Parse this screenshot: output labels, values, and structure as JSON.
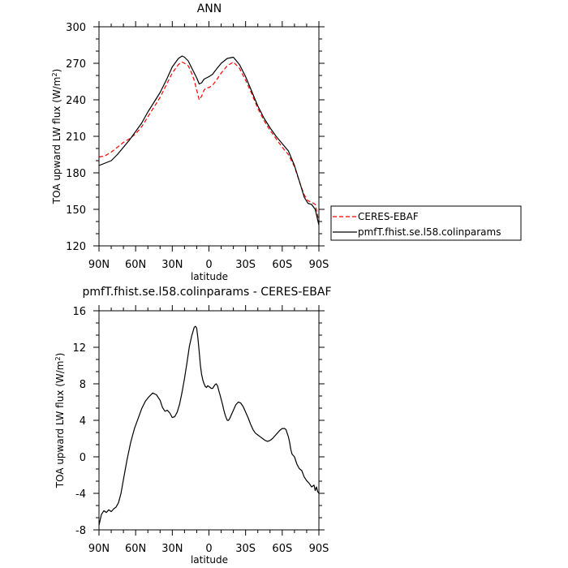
{
  "chart_data": [
    {
      "type": "line",
      "title": "ANN",
      "xlabel": "latitude",
      "ylabel_main": "TOA upward LW flux (W/m",
      "ylabel_sup": "2",
      "ylabel_close": ")",
      "xlim": [
        90,
        -90
      ],
      "ylim": [
        120,
        300
      ],
      "xticks": [
        {
          "value": 90,
          "label": "90N"
        },
        {
          "value": 60,
          "label": "60N"
        },
        {
          "value": 30,
          "label": "30N"
        },
        {
          "value": 0,
          "label": "0"
        },
        {
          "value": -30,
          "label": "30S"
        },
        {
          "value": -60,
          "label": "60S"
        },
        {
          "value": -90,
          "label": "90S"
        }
      ],
      "yticks": [
        120,
        150,
        180,
        210,
        240,
        270,
        300
      ],
      "legend": {
        "placement": "right"
      },
      "series": [
        {
          "name": "CERES-EBAF",
          "color": "#ff0000",
          "dash": "dashed",
          "x": [
            90,
            85,
            80,
            75,
            70,
            65,
            60,
            55,
            50,
            45,
            40,
            35,
            30,
            25,
            22,
            20,
            17,
            15,
            12,
            10,
            8,
            6,
            4,
            2,
            0,
            -3,
            -6,
            -10,
            -15,
            -20,
            -25,
            -30,
            -35,
            -40,
            -45,
            -50,
            -55,
            -60,
            -65,
            -70,
            -75,
            -78,
            -81,
            -84,
            -87,
            -90
          ],
          "y": [
            193,
            194,
            197,
            201,
            205,
            208,
            212,
            218,
            226,
            234,
            242,
            252,
            262,
            269,
            271,
            270,
            268,
            264,
            256,
            248,
            240,
            243,
            248,
            250,
            250,
            252,
            256,
            262,
            268,
            271,
            266,
            256,
            245,
            233,
            223,
            215,
            208,
            201,
            195,
            185,
            170,
            162,
            157,
            156,
            154,
            140
          ]
        },
        {
          "name": "pmfT.fhist.se.l58.colinparams",
          "color": "#000000",
          "dash": "solid",
          "x": [
            90,
            85,
            80,
            75,
            70,
            65,
            60,
            55,
            50,
            45,
            40,
            35,
            30,
            25,
            22,
            20,
            17,
            15,
            12,
            10,
            8,
            6,
            4,
            2,
            0,
            -3,
            -6,
            -10,
            -15,
            -20,
            -25,
            -30,
            -35,
            -40,
            -45,
            -50,
            -55,
            -60,
            -65,
            -70,
            -75,
            -78,
            -81,
            -84,
            -87,
            -90
          ],
          "y": [
            186,
            188,
            190,
            195,
            201,
            207,
            214,
            221,
            230,
            238,
            246,
            256,
            267,
            274,
            276,
            275,
            272,
            268,
            262,
            258,
            253,
            254,
            257,
            258,
            259,
            261,
            265,
            270,
            274,
            275,
            269,
            259,
            247,
            235,
            225,
            217,
            210,
            204,
            198,
            186,
            170,
            160,
            155,
            154,
            150,
            137
          ]
        }
      ]
    },
    {
      "type": "line",
      "title": "pmfT.fhist.se.l58.colinparams - CERES-EBAF",
      "xlabel": "latitude",
      "ylabel_main": "TOA upward LW flux (W/m",
      "ylabel_sup": "2",
      "ylabel_close": ")",
      "xlim": [
        90,
        -90
      ],
      "ylim": [
        -8,
        16
      ],
      "xticks": [
        {
          "value": 90,
          "label": "90N"
        },
        {
          "value": 60,
          "label": "60N"
        },
        {
          "value": 30,
          "label": "30N"
        },
        {
          "value": 0,
          "label": "0"
        },
        {
          "value": -30,
          "label": "30S"
        },
        {
          "value": -60,
          "label": "60S"
        },
        {
          "value": -90,
          "label": "90S"
        }
      ],
      "yticks": [
        -8,
        -4,
        0,
        4,
        8,
        12,
        16
      ],
      "series": [
        {
          "color": "#000000",
          "dash": "solid",
          "x": [
            90,
            88,
            86,
            84,
            82,
            80,
            78,
            76,
            74,
            72,
            70,
            67,
            64,
            61,
            58,
            55,
            52,
            49,
            46,
            43,
            40,
            38,
            36,
            34,
            32,
            30,
            28,
            26,
            24,
            22,
            20,
            18,
            16,
            14,
            12,
            11,
            10,
            9,
            8,
            7,
            6,
            5,
            4,
            3,
            2,
            1,
            0,
            -1,
            -2,
            -3,
            -4,
            -5,
            -6,
            -7,
            -8,
            -9,
            -10,
            -11,
            -12,
            -13,
            -14,
            -15,
            -16,
            -17,
            -18,
            -19,
            -20,
            -22,
            -24,
            -26,
            -28,
            -30,
            -32,
            -34,
            -36,
            -38,
            -40,
            -42,
            -44,
            -46,
            -48,
            -50,
            -52,
            -54,
            -56,
            -58,
            -60,
            -62,
            -63,
            -64,
            -65,
            -66,
            -67,
            -68,
            -70,
            -72,
            -74,
            -76,
            -78,
            -80,
            -82,
            -84,
            -86,
            -87,
            -88,
            -89,
            -90
          ],
          "y": [
            -7.5,
            -6.3,
            -5.9,
            -6.1,
            -5.8,
            -6.0,
            -5.7,
            -5.5,
            -5.0,
            -4.0,
            -2.5,
            -0.3,
            1.6,
            3.1,
            4.2,
            5.3,
            6.1,
            6.6,
            7.0,
            6.8,
            6.2,
            5.4,
            5.0,
            5.1,
            4.8,
            4.3,
            4.4,
            4.9,
            5.8,
            7.1,
            8.6,
            10.3,
            12.1,
            13.3,
            14.2,
            14.3,
            14.1,
            13.0,
            11.5,
            10.0,
            9.0,
            8.4,
            8.0,
            7.7,
            7.6,
            7.8,
            7.7,
            7.6,
            7.5,
            7.5,
            7.7,
            7.9,
            8.0,
            7.8,
            7.3,
            6.8,
            6.3,
            5.8,
            5.2,
            4.7,
            4.3,
            4.0,
            4.0,
            4.2,
            4.5,
            4.8,
            5.1,
            5.7,
            6.0,
            5.9,
            5.5,
            4.9,
            4.3,
            3.6,
            3.0,
            2.6,
            2.4,
            2.2,
            2.0,
            1.8,
            1.7,
            1.8,
            2.0,
            2.3,
            2.6,
            2.9,
            3.1,
            3.1,
            3.0,
            2.6,
            2.2,
            1.6,
            0.8,
            0.3,
            0.0,
            -0.8,
            -1.3,
            -1.5,
            -2.2,
            -2.6,
            -2.9,
            -3.3,
            -3.1,
            -3.7,
            -3.3,
            -3.8,
            -4.0
          ]
        }
      ]
    }
  ]
}
